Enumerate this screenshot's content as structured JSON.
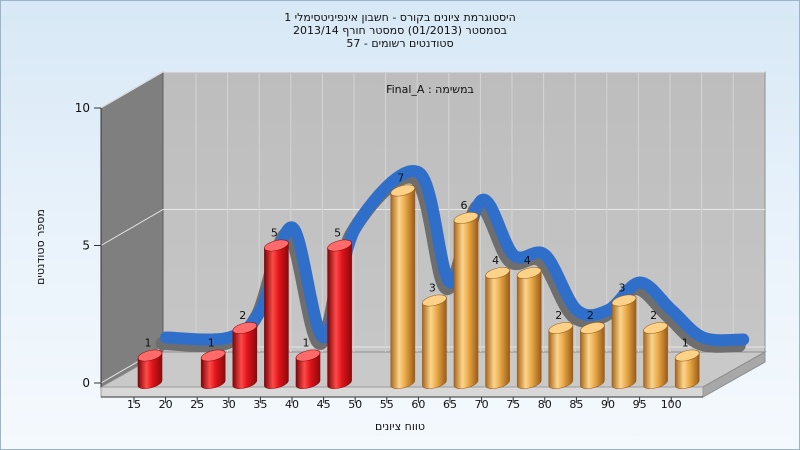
{
  "chart_data": {
    "type": "bar",
    "title_lines": [
      "היסטוגרמת ציונים בקורס - חשבון אינפיניטסימלי 1",
      "בסמסטר  (01/2013)  סמסטר חורף 2013/14",
      "סטודנטים רשומים - 57"
    ],
    "subtitle": "במשימה : Final_A",
    "xlabel": "טווח ציונים",
    "ylabel": "מספר סטודנטים",
    "ylim": [
      0,
      10
    ],
    "yticks": [
      0,
      5,
      10
    ],
    "xticks": [
      15,
      20,
      25,
      30,
      35,
      40,
      45,
      50,
      55,
      60,
      65,
      70,
      75,
      80,
      85,
      90,
      95,
      100
    ],
    "bars": [
      {
        "x": 15,
        "value": 1
      },
      {
        "x": 25,
        "value": 1
      },
      {
        "x": 30,
        "value": 2
      },
      {
        "x": 35,
        "value": 5
      },
      {
        "x": 40,
        "value": 1
      },
      {
        "x": 45,
        "value": 5
      },
      {
        "x": 55,
        "value": 7
      },
      {
        "x": 60,
        "value": 3
      },
      {
        "x": 65,
        "value": 6
      },
      {
        "x": 70,
        "value": 4
      },
      {
        "x": 75,
        "value": 4
      },
      {
        "x": 80,
        "value": 2
      },
      {
        "x": 85,
        "value": 2
      },
      {
        "x": 90,
        "value": 3
      },
      {
        "x": 95,
        "value": 2
      },
      {
        "x": 100,
        "value": 1
      }
    ],
    "fail_threshold": 50,
    "colors": {
      "fail_bar": "#d8141a",
      "pass_bar": "#e3a33c",
      "curve": "#2f6fc9",
      "plot_wall": "#c0c0c0",
      "side_wall": "#808080"
    },
    "grid": true,
    "legend": "none"
  }
}
